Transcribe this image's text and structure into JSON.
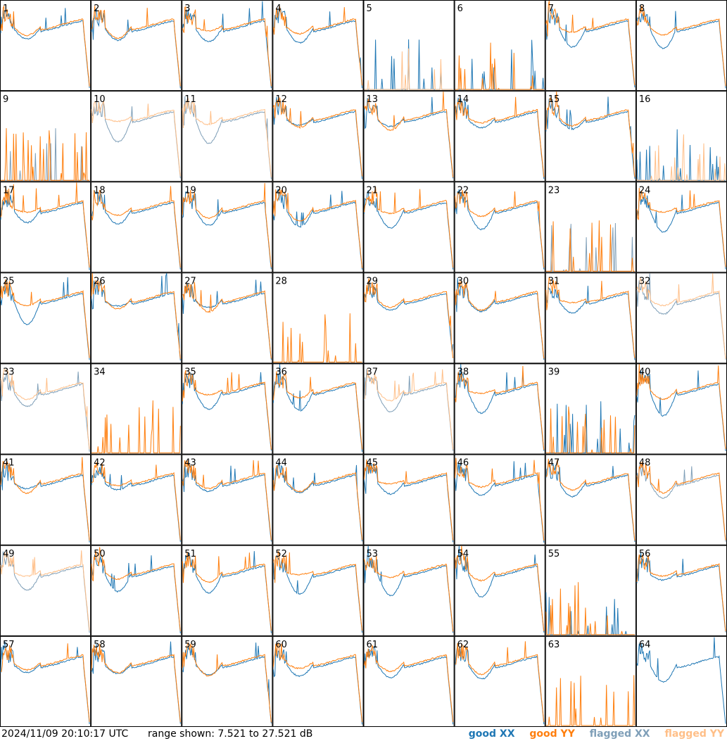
{
  "chart_data": {
    "type": "line",
    "panel_count": 64,
    "panel_labels": [
      "1",
      "2",
      "3",
      "4",
      "5",
      "6",
      "7",
      "8",
      "9",
      "10",
      "11",
      "12",
      "13",
      "14",
      "15",
      "16",
      "17",
      "18",
      "19",
      "20",
      "21",
      "22",
      "23",
      "24",
      "25",
      "26",
      "27",
      "28",
      "29",
      "30",
      "31",
      "32",
      "33",
      "34",
      "35",
      "36",
      "37",
      "38",
      "39",
      "40",
      "41",
      "42",
      "43",
      "44",
      "45",
      "46",
      "47",
      "48",
      "49",
      "50",
      "51",
      "52",
      "53",
      "54",
      "55",
      "56",
      "57",
      "58",
      "59",
      "60",
      "61",
      "62",
      "63",
      "64"
    ],
    "grid": {
      "rows": 8,
      "cols": 8
    },
    "series": [
      {
        "name": "good XX",
        "color": "#1f77b4"
      },
      {
        "name": "good YY",
        "color": "#ff7f0e"
      },
      {
        "name": "flagged XX",
        "color": "#7f9fb8"
      },
      {
        "name": "flagged YY",
        "color": "#ffbf88"
      }
    ],
    "ylim_db": [
      7.521,
      27.521
    ],
    "flagged_panels": {
      "xx": [
        9,
        10,
        11,
        23,
        32,
        33,
        37,
        48,
        49
      ],
      "yy": [
        5,
        10,
        11,
        16,
        32,
        33,
        37,
        49
      ]
    },
    "missing_panels": {
      "xx": [
        28,
        34,
        63
      ],
      "yy": [
        64
      ]
    },
    "noisy_panels": [
      5,
      6,
      9,
      16,
      23,
      28,
      34,
      39,
      55,
      63
    ]
  },
  "footer": {
    "timestamp": "2024/11/09 20:10:17 UTC",
    "range_text": "range shown: 7.521 to 27.521 dB",
    "legend": [
      {
        "label": "good XX",
        "color": "#1f77b4"
      },
      {
        "label": "good YY",
        "color": "#ff7f0e"
      },
      {
        "label": "flagged XX",
        "color": "#7f9fb8"
      },
      {
        "label": "flagged YY",
        "color": "#ffbf88"
      }
    ]
  }
}
